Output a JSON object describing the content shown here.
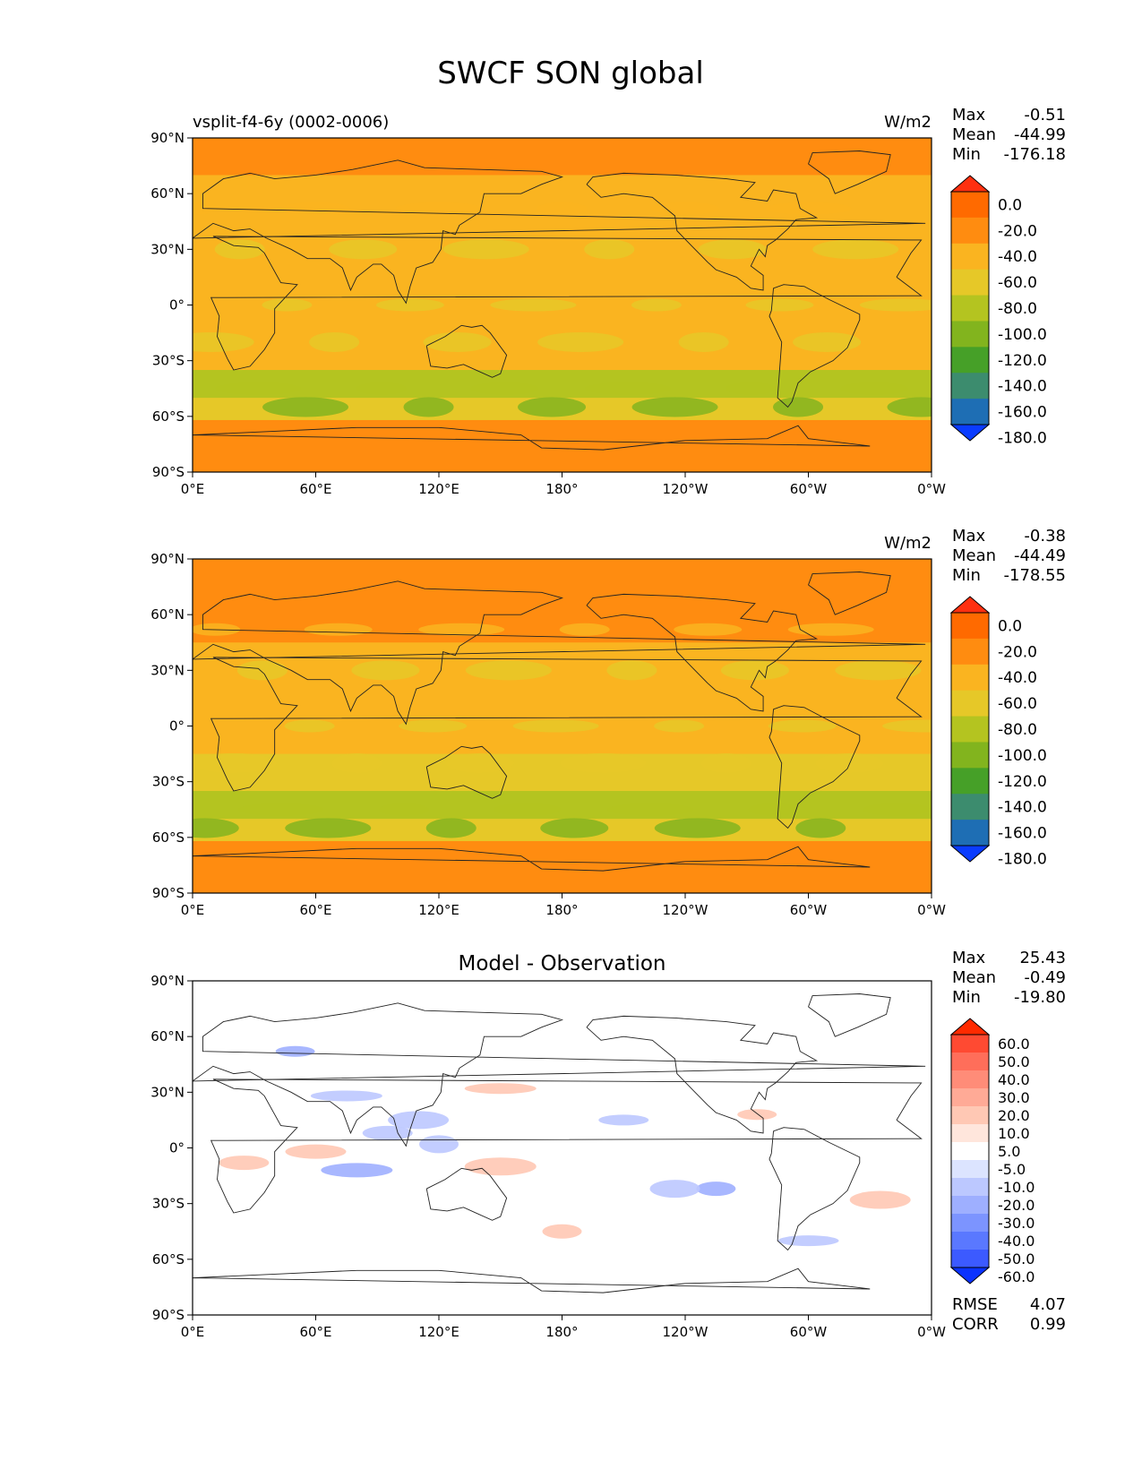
{
  "figure": {
    "title": "SWCF SON global"
  },
  "chart_data": [
    {
      "type": "heatmap",
      "subtitle": "vsplit-f4-6y (0002-0006)",
      "units": "W/m2",
      "stats": [
        {
          "label": "Max",
          "value": "-0.51"
        },
        {
          "label": "Mean",
          "value": "-44.99"
        },
        {
          "label": "Min",
          "value": "-176.18"
        }
      ],
      "lat_ticks": [
        "90°N",
        "60°N",
        "30°N",
        "0°",
        "30°S",
        "60°S",
        "90°S"
      ],
      "lon_ticks": [
        "0°E",
        "60°E",
        "120°E",
        "180°",
        "120°W",
        "60°W",
        "0°W"
      ],
      "colorbar": {
        "levels": [
          "0.0",
          "-20.0",
          "-40.0",
          "-60.0",
          "-80.0",
          "-100.0",
          "-120.0",
          "-140.0",
          "-160.0",
          "-180.0"
        ],
        "colors": [
          "#ff3010",
          "#ff6a00",
          "#ff8c10",
          "#fab420",
          "#e6c828",
          "#b4c420",
          "#82b41e",
          "#46a028",
          "#3c8c6e",
          "#1e6eb4",
          "#0a3cff"
        ]
      },
      "bands": [
        {
          "lat": 90,
          "value": -15
        },
        {
          "lat": 70,
          "value": -35
        },
        {
          "lat": 45,
          "value": -45
        },
        {
          "lat": 25,
          "value": -42
        },
        {
          "lat": 5,
          "value": -55
        },
        {
          "lat": -15,
          "value": -48
        },
        {
          "lat": -35,
          "value": -65
        },
        {
          "lat": -50,
          "value": -95
        },
        {
          "lat": -62,
          "value": -30
        },
        {
          "lat": -90,
          "value": -10
        }
      ]
    },
    {
      "type": "heatmap",
      "subtitle": "",
      "units": "W/m2",
      "stats": [
        {
          "label": "Max",
          "value": "-0.38"
        },
        {
          "label": "Mean",
          "value": "-44.49"
        },
        {
          "label": "Min",
          "value": "-178.55"
        }
      ],
      "lat_ticks": [
        "90°N",
        "60°N",
        "30°N",
        "0°",
        "30°S",
        "60°S",
        "90°S"
      ],
      "lon_ticks": [
        "0°E",
        "60°E",
        "120°E",
        "180°",
        "120°W",
        "60°W",
        "0°W"
      ],
      "colorbar": {
        "levels": [
          "0.0",
          "-20.0",
          "-40.0",
          "-60.0",
          "-80.0",
          "-100.0",
          "-120.0",
          "-140.0",
          "-160.0",
          "-180.0"
        ],
        "colors": [
          "#ff3010",
          "#ff6a00",
          "#ff8c10",
          "#fab420",
          "#e6c828",
          "#b4c420",
          "#82b41e",
          "#46a028",
          "#3c8c6e",
          "#1e6eb4",
          "#0a3cff"
        ]
      },
      "bands": [
        {
          "lat": 90,
          "value": -15
        },
        {
          "lat": 70,
          "value": -33
        },
        {
          "lat": 45,
          "value": -42
        },
        {
          "lat": 25,
          "value": -45
        },
        {
          "lat": 5,
          "value": -52
        },
        {
          "lat": -15,
          "value": -50
        },
        {
          "lat": -35,
          "value": -70
        },
        {
          "lat": -50,
          "value": -98
        },
        {
          "lat": -62,
          "value": -30
        },
        {
          "lat": -90,
          "value": -10
        }
      ]
    },
    {
      "type": "heatmap",
      "subtitle": "Model - Observation",
      "units": "",
      "stats": [
        {
          "label": "Max",
          "value": "25.43"
        },
        {
          "label": "Mean",
          "value": "-0.49"
        },
        {
          "label": "Min",
          "value": "-19.80"
        }
      ],
      "extra_stats": [
        {
          "label": "RMSE",
          "value": "4.07"
        },
        {
          "label": "CORR",
          "value": "0.99"
        }
      ],
      "lat_ticks": [
        "90°N",
        "60°N",
        "30°N",
        "0°",
        "30°S",
        "60°S",
        "90°S"
      ],
      "lon_ticks": [
        "0°E",
        "60°E",
        "120°E",
        "180°",
        "120°W",
        "60°W",
        "0°W"
      ],
      "colorbar": {
        "levels": [
          "60.0",
          "50.0",
          "40.0",
          "30.0",
          "20.0",
          "10.0",
          "5.0",
          "-5.0",
          "-10.0",
          "-20.0",
          "-30.0",
          "-40.0",
          "-50.0",
          "-60.0"
        ],
        "colors": [
          "#ff2a00",
          "#ff4a32",
          "#ff6e5a",
          "#ff8c78",
          "#ffaa96",
          "#ffc8b4",
          "#ffe6dc",
          "#ffffff",
          "#dce4ff",
          "#bcc8ff",
          "#9eafff",
          "#7c94ff",
          "#5a78ff",
          "#3c5aff",
          "#0a32ff"
        ]
      },
      "bands": []
    }
  ]
}
